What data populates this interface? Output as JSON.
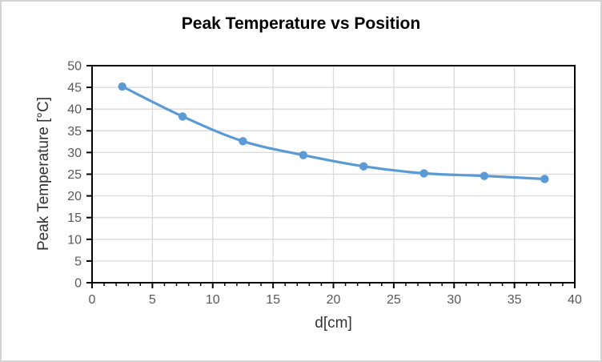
{
  "window": {
    "background_color": "#ffffff",
    "frame_border_color": "#d4d4d4"
  },
  "chart_data": {
    "type": "line",
    "title": "Peak Temperature vs Position",
    "xlabel": "d[cm]",
    "ylabel": "Peak Temperature [°C]",
    "x": [
      2.5,
      7.5,
      12.5,
      17.5,
      22.5,
      27.5,
      32.5,
      37.5
    ],
    "series": [
      {
        "name": "Peak Temperature",
        "values": [
          45.2,
          38.3,
          32.6,
          29.4,
          26.8,
          25.2,
          24.6,
          23.9
        ],
        "color": "#5B9BD5",
        "marker": "circle",
        "line_style": "smooth"
      }
    ],
    "xlim": [
      0,
      40
    ],
    "ylim": [
      0,
      50
    ],
    "x_ticks": [
      0,
      5,
      10,
      15,
      20,
      25,
      30,
      35,
      40
    ],
    "y_ticks": [
      0,
      5,
      10,
      15,
      20,
      25,
      30,
      35,
      40,
      45,
      50
    ],
    "x_minor_tick_step": 1,
    "grid": true,
    "legend_position": "none",
    "colors": {
      "gridline": "#D9D9D9",
      "axis": "#000000",
      "tick_labels": "#595959",
      "axis_titles": "#333333",
      "title": "#000000"
    }
  }
}
